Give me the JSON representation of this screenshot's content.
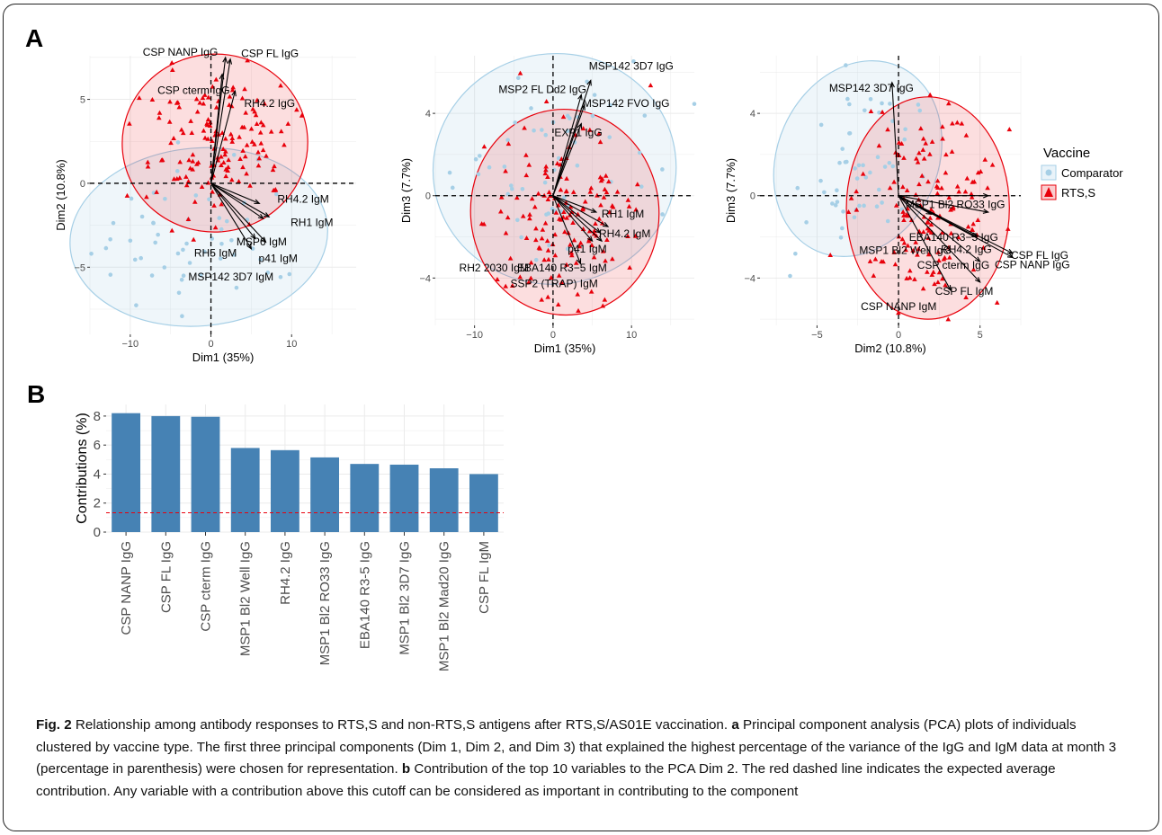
{
  "figure": {
    "panel_a_letter": "A",
    "panel_b_letter": "B",
    "caption_fig": "Fig. 2",
    "caption_title": " Relationship among antibody responses to RTS,S and non-RTS,S antigens after RTS,S/AS01E vaccination. ",
    "caption_a_letter": "a",
    "caption_a": " Principal component analysis (PCA) plots of individuals clustered by vaccine type. The first three principal components (Dim 1, Dim 2, and Dim 3) that explained the highest percentage of the variance of the IgG and IgM data at month 3 (percentage in parenthesis) were chosen for representation. ",
    "caption_b_letter": "b",
    "caption_b": " Contribution of the top 10 variables to the PCA Dim 2. The red dashed line indicates the expected average contribution. Any variable with a contribution above this cutoff can be considered as important in contributing to the component"
  },
  "colors": {
    "comparator": "#a6cfe6",
    "rts": "#e8000b",
    "bar": "#4682b4",
    "grid": "#ebebeb"
  },
  "legend": {
    "title": "Vaccine",
    "items": [
      "Comparator",
      "RTS,S"
    ]
  },
  "chart_data": [
    {
      "type": "scatter",
      "id": "pca1",
      "xlabel": "Dim1 (35%)",
      "ylabel": "Dim2 (10.8%)",
      "xlim": [
        -15,
        18
      ],
      "ylim": [
        -9,
        7.6
      ],
      "xticks": [
        -10,
        0,
        10
      ],
      "yticks": [
        -5,
        0,
        5
      ],
      "ellipses": [
        {
          "group": "Comparator",
          "cx": -1.5,
          "cy": -3.2,
          "rx": 16,
          "ry": 5.3,
          "angle_deg": 5
        },
        {
          "group": "RTS,S",
          "cx": 0.5,
          "cy": 2.4,
          "rx": 11.5,
          "ry": 5.3,
          "angle_deg": 4
        }
      ],
      "arrows": [
        {
          "label": "CSP NANP IgG",
          "x": 1.8,
          "y": 7.5
        },
        {
          "label": "CSP FL IgG",
          "x": 2.4,
          "y": 7.4
        },
        {
          "label": "CSP cterm IgG",
          "x": 1.4,
          "y": 6.5
        },
        {
          "label": "RH4.2 IgG",
          "x": 3.0,
          "y": 5.5
        },
        {
          "label": "RH4.2 IgM",
          "x": 6.0,
          "y": -1.2
        },
        {
          "label": "RH1 IgM",
          "x": 7.2,
          "y": -2.0
        },
        {
          "label": "MSP6 IgM",
          "x": 6.5,
          "y": -2.1
        },
        {
          "label": "p41 IgM",
          "x": 6.8,
          "y": -3.5
        },
        {
          "label": "RH5 IgM",
          "x": 5.5,
          "y": -3.3
        },
        {
          "label": "MSP142 3D7 IgM",
          "x": 5.0,
          "y": -3.9
        }
      ]
    },
    {
      "type": "scatter",
      "id": "pca2",
      "xlabel": "Dim1 (35%)",
      "ylabel": "Dim3 (7.7%)",
      "xlim": [
        -15,
        18
      ],
      "ylim": [
        -6.3,
        6.8
      ],
      "xticks": [
        -10,
        0,
        10
      ],
      "yticks": [
        -4,
        0,
        4
      ],
      "ellipses": [
        {
          "group": "Comparator",
          "cx": 0.2,
          "cy": 1.3,
          "rx": 15.5,
          "ry": 5.6,
          "angle_deg": 8
        },
        {
          "group": "RTS,S",
          "cx": 1.5,
          "cy": -0.8,
          "rx": 12,
          "ry": 5.0,
          "angle_deg": 4
        }
      ],
      "arrows": [
        {
          "label": "MSP142 3D7 IgG",
          "x": 4.8,
          "y": 5.6
        },
        {
          "label": "MSP2 FL Dd2 IgG",
          "x": 3.6,
          "y": 4.9
        },
        {
          "label": "MSP142 FVO IgG",
          "x": 4.0,
          "y": 4.4
        },
        {
          "label": "EXP1 IgG",
          "x": 3.6,
          "y": 3.5
        },
        {
          "label": "RH1 IgM",
          "x": 5.5,
          "y": -0.8
        },
        {
          "label": "p41 IgM",
          "x": 6.0,
          "y": -1.8
        },
        {
          "label": "RH4.2 IgM",
          "x": 7.0,
          "y": -1.5
        },
        {
          "label": "RH2 2030 IgM",
          "x": 5.0,
          "y": -2.2
        },
        {
          "label": "EBA140 R3−5 IgM",
          "x": 6.2,
          "y": -2.2
        },
        {
          "label": "SSP2 (TRAP) IgM",
          "x": 3.5,
          "y": -3.3
        }
      ]
    },
    {
      "type": "scatter",
      "id": "pca3",
      "xlabel": "Dim2 (10.8%)",
      "ylabel": "Dim3 (7.7%)",
      "xlim": [
        -8.5,
        7.5
      ],
      "ylim": [
        -6.3,
        6.8
      ],
      "xticks": [
        -5,
        0,
        5
      ],
      "yticks": [
        -4,
        0,
        4
      ],
      "ellipses": [
        {
          "group": "Comparator",
          "cx": -2.5,
          "cy": 1.8,
          "rx": 6.2,
          "ry": 3.9,
          "angle_deg": 66
        },
        {
          "group": "RTS,S",
          "cx": 1.8,
          "cy": -0.6,
          "rx": 5.0,
          "ry": 5.4,
          "angle_deg": 0
        }
      ],
      "arrows": [
        {
          "label": "MSP142 3D7 IgG",
          "x": -0.4,
          "y": 5.5
        },
        {
          "label": "MSP1 Bl2 RO33 IgG",
          "x": 5.5,
          "y": 0
        },
        {
          "label": "EBA140 R3−5 IgG",
          "x": 5.5,
          "y": -0.8
        },
        {
          "label": "MSP1 Bl2 Well IgG",
          "x": 2.0,
          "y": -0.9
        },
        {
          "label": "RH4.2 IgG",
          "x": 4.8,
          "y": -2.0
        },
        {
          "label": "CSP FL IgG",
          "x": 7.0,
          "y": -2.8
        },
        {
          "label": "CSP NANP IgG",
          "x": 7.0,
          "y": -3.0
        },
        {
          "label": "CSP cterm IgG",
          "x": 5.0,
          "y": -3.2
        },
        {
          "label": "CSP FL IgM",
          "x": 5.0,
          "y": -4.2
        },
        {
          "label": "CSP NANP IgM",
          "x": 3.2,
          "y": -4.6
        }
      ]
    },
    {
      "type": "bar",
      "id": "contrib",
      "categories": [
        "CSP NANP IgG",
        "CSP FL IgG",
        "CSP cterm IgG",
        "MSP1 Bl2 Well IgG",
        "RH4.2 IgG",
        "MSP1 Bl2 RO33 IgG",
        "EBA140 R3-5 IgG",
        "MSP1 Bl2 3D7 IgG",
        "MSP1 Bl2 Mad20 IgG",
        "CSP FL IgM"
      ],
      "values": [
        8.2,
        8.0,
        7.95,
        5.8,
        5.65,
        5.15,
        4.7,
        4.65,
        4.4,
        4.0
      ],
      "ylabel": "Contributions (%)",
      "xlabel": "",
      "ylim": [
        0,
        8.8
      ],
      "yticks": [
        0,
        2,
        4,
        6,
        8
      ],
      "reference_line": 1.33
    }
  ]
}
